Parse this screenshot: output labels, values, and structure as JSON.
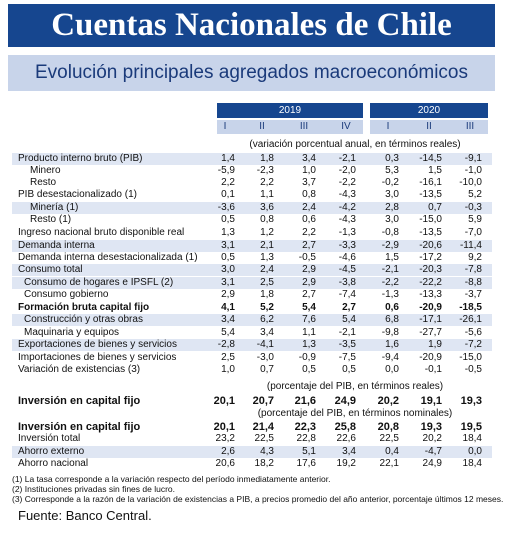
{
  "title": "Cuentas Nacionales de Chile",
  "subtitle": "Evolución principales agregados macroeconómicos",
  "years": [
    "2019",
    "2020"
  ],
  "quarters_2019": [
    "I",
    "II",
    "III",
    "IV"
  ],
  "quarters_2020": [
    "I",
    "II",
    "III"
  ],
  "section_notes": {
    "a": "(variación porcentual anual, en términos reales)",
    "b": "(porcentaje del PIB, en términos reales)",
    "c": "(porcentaje del PIB, en términos nominales)"
  },
  "rows": [
    {
      "label": "Producto interno bruto (PIB)",
      "values": [
        "1,4",
        "1,8",
        "3,4",
        "-2,1",
        "0,3",
        "-14,5",
        "-9,1"
      ]
    },
    {
      "label": "Minero",
      "values": [
        "-5,9",
        "-2,3",
        "1,0",
        "-2,0",
        "5,3",
        "1,5",
        "-1,0"
      ]
    },
    {
      "label": "Resto",
      "values": [
        "2,2",
        "2,2",
        "3,7",
        "-2,2",
        "-0,2",
        "-16,1",
        "-10,0"
      ]
    },
    {
      "label": "PIB desestacionalizado (1)",
      "values": [
        "0,1",
        "1,1",
        "0,8",
        "-4,3",
        "3,0",
        "-13,5",
        "5,2"
      ]
    },
    {
      "label": "Minería (1)",
      "values": [
        "-3,6",
        "3,6",
        "2,4",
        "-4,2",
        "2,8",
        "0,7",
        "-0,3"
      ]
    },
    {
      "label": "Resto (1)",
      "values": [
        "0,5",
        "0,8",
        "0,6",
        "-4,3",
        "3,0",
        "-15,0",
        "5,9"
      ]
    },
    {
      "label": "Ingreso nacional bruto disponible real",
      "values": [
        "1,3",
        "1,2",
        "2,2",
        "-1,3",
        "-0,8",
        "-13,5",
        "-7,0"
      ]
    },
    {
      "label": "Demanda interna",
      "values": [
        "3,1",
        "2,1",
        "2,7",
        "-3,3",
        "-2,9",
        "-20,6",
        "-11,4"
      ]
    },
    {
      "label": "Demanda interna desestacionalizada (1)",
      "values": [
        "0,5",
        "1,3",
        "-0,5",
        "-4,6",
        "1,5",
        "-17,2",
        "9,2"
      ]
    },
    {
      "label": "Consumo total",
      "values": [
        "3,0",
        "2,4",
        "2,9",
        "-4,5",
        "-2,1",
        "-20,3",
        "-7,8"
      ]
    },
    {
      "label": "Consumo de hogares e IPSFL (2)",
      "values": [
        "3,1",
        "2,5",
        "2,9",
        "-3,8",
        "-2,2",
        "-22,2",
        "-8,8"
      ]
    },
    {
      "label": "Consumo gobierno",
      "values": [
        "2,9",
        "1,8",
        "2,7",
        "-7,4",
        "-1,3",
        "-13,3",
        "-3,7"
      ]
    },
    {
      "label": "Formación bruta capital fijo",
      "values": [
        "4,1",
        "5,2",
        "5,4",
        "2,7",
        "0,6",
        "-20,9",
        "-18,5"
      ]
    },
    {
      "label": "Construcción y otras obras",
      "values": [
        "3,4",
        "6,2",
        "7,6",
        "5,4",
        "6,8",
        "-17,1",
        "-26,1"
      ]
    },
    {
      "label": "Maquinaria y equipos",
      "values": [
        "5,4",
        "3,4",
        "1,1",
        "-2,1",
        "-9,8",
        "-27,7",
        "-5,6"
      ]
    },
    {
      "label": "Exportaciones de bienes y servicios",
      "values": [
        "-2,8",
        "-4,1",
        "1,3",
        "-3,5",
        "1,6",
        "1,9",
        "-7,2"
      ]
    },
    {
      "label": "Importaciones de bienes y servicios",
      "values": [
        "2,5",
        "-3,0",
        "-0,9",
        "-7,5",
        "-9,4",
        "-20,9",
        "-15,0"
      ]
    },
    {
      "label": "Variación de existencias (3)",
      "values": [
        "1,0",
        "0,7",
        "0,5",
        "0,5",
        "0,0",
        "-0,1",
        "-0,5"
      ]
    },
    {
      "label": "Inversión en capital fijo",
      "values": [
        "20,1",
        "20,7",
        "21,6",
        "24,9",
        "20,2",
        "19,1",
        "19,3"
      ]
    },
    {
      "label": "Inversión en capital fijo",
      "values": [
        "20,1",
        "21,4",
        "22,3",
        "25,8",
        "20,8",
        "19,3",
        "19,5"
      ]
    },
    {
      "label": "Inversión total",
      "values": [
        "23,2",
        "22,5",
        "22,8",
        "22,6",
        "22,5",
        "20,2",
        "18,4"
      ]
    },
    {
      "label": "Ahorro externo",
      "values": [
        "2,6",
        "4,3",
        "5,1",
        "3,4",
        "0,4",
        "-4,7",
        "0,0"
      ]
    },
    {
      "label": "Ahorro nacional",
      "values": [
        "20,6",
        "18,2",
        "17,6",
        "19,2",
        "22,1",
        "24,9",
        "18,4"
      ]
    }
  ],
  "footnotes": [
    "(1) La tasa corresponde a la variación respecto del período inmediatamente anterior.",
    "(2) Instituciones privadas sin fines de lucro.",
    "(3) Corresponde a la razón de la variación de existencias a PIB, a precios promedio del año anterior, porcentaje últimos 12 meses."
  ],
  "source": "Fuente: Banco Central."
}
